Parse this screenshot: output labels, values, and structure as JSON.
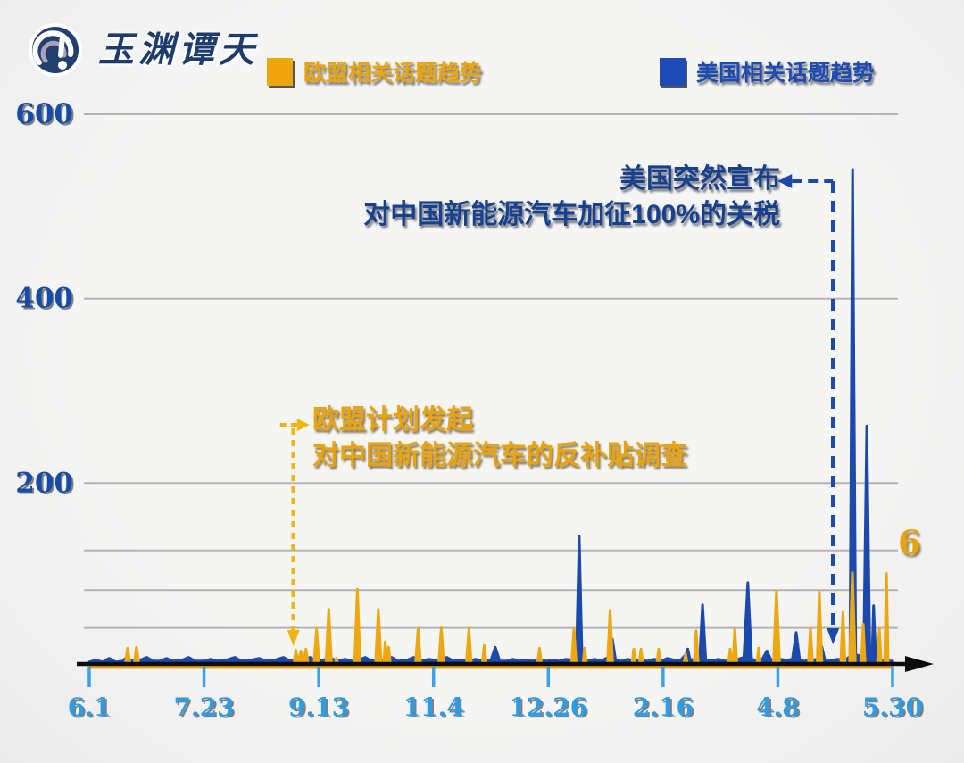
{
  "logo": {
    "text": "玉渊谭天"
  },
  "legend": [
    {
      "key": "eu",
      "label": "欧盟相关话题趋势",
      "color": "#eda70f"
    },
    {
      "key": "us",
      "label": "美国相关话题趋势",
      "color": "#1c4bb4"
    }
  ],
  "annotations": {
    "us": {
      "line1": "美国突然宣布",
      "line2": "对中国新能源汽车加征100%的关税",
      "color": "#16418f",
      "marker_day": 337
    },
    "eu": {
      "line1": "欧盟计划发起",
      "line2": "对中国新能源汽车的反补贴调查",
      "color": "#e8a30e",
      "marker_day": 92.5
    }
  },
  "right_label": "6",
  "colors": {
    "eu_series": "#eda70f",
    "us_series": "#1b49ad",
    "x_label": "#2d9ce6",
    "y_label": "#164ba8",
    "gridline": "#b3b3b3",
    "axis": "#0d0d0d",
    "tick": "#3ba1e8",
    "us_dash": "#1b4aa8",
    "eu_dash": "#f0b40e"
  },
  "chart_data": {
    "type": "line",
    "title": "",
    "xlabel": "",
    "ylabel": "",
    "grid": "horizontal",
    "legend_position": "top",
    "x_axis": {
      "tick_labels": [
        "6.1",
        "7.23",
        "9.13",
        "11.4",
        "12.26",
        "2.16",
        "4.8",
        "5.30"
      ],
      "tick_days": [
        0,
        52,
        104,
        156,
        208,
        260,
        312,
        364
      ],
      "range_days": [
        0,
        364
      ]
    },
    "y_axis": {
      "tick_labels": [
        "200",
        "400",
        "600"
      ],
      "tick_values": [
        200,
        400,
        600
      ],
      "minor_gridline_values": [
        43,
        84,
        127
      ],
      "ylim": [
        0,
        620
      ]
    },
    "series": [
      {
        "key": "us",
        "name": "美国相关话题趋势",
        "color": "#1b49ad",
        "points": [
          [
            0,
            6
          ],
          [
            3,
            8
          ],
          [
            6,
            6
          ],
          [
            9,
            10
          ],
          [
            12,
            6
          ],
          [
            15,
            7
          ],
          [
            17,
            11
          ],
          [
            19,
            7
          ],
          [
            23,
            8
          ],
          [
            26,
            11
          ],
          [
            29,
            7
          ],
          [
            32,
            7
          ],
          [
            35,
            10
          ],
          [
            38,
            7
          ],
          [
            42,
            8
          ],
          [
            45,
            11
          ],
          [
            48,
            7
          ],
          [
            52,
            7
          ],
          [
            55,
            9
          ],
          [
            58,
            7
          ],
          [
            62,
            8
          ],
          [
            66,
            11
          ],
          [
            69,
            7
          ],
          [
            73,
            8
          ],
          [
            77,
            10
          ],
          [
            80,
            7
          ],
          [
            84,
            8
          ],
          [
            88,
            11
          ],
          [
            91,
            7
          ],
          [
            94,
            9
          ],
          [
            97,
            7
          ],
          [
            100,
            11
          ],
          [
            103,
            7
          ],
          [
            106,
            8
          ],
          [
            109,
            11
          ],
          [
            112,
            7
          ],
          [
            116,
            9
          ],
          [
            119,
            7
          ],
          [
            122,
            8
          ],
          [
            125,
            11
          ],
          [
            128,
            7
          ],
          [
            131,
            9
          ],
          [
            134,
            7
          ],
          [
            137,
            11
          ],
          [
            140,
            7
          ],
          [
            144,
            8
          ],
          [
            147,
            11
          ],
          [
            150,
            7
          ],
          [
            154,
            9
          ],
          [
            158,
            7
          ],
          [
            162,
            11
          ],
          [
            165,
            7
          ],
          [
            169,
            8
          ],
          [
            172,
            7
          ],
          [
            175,
            9
          ],
          [
            178,
            7
          ],
          [
            182,
            8
          ],
          [
            184,
            22
          ],
          [
            186,
            7
          ],
          [
            189,
            7
          ],
          [
            192,
            9
          ],
          [
            195,
            7
          ],
          [
            198,
            8
          ],
          [
            201,
            7
          ],
          [
            204,
            9
          ],
          [
            207,
            7
          ],
          [
            210,
            8
          ],
          [
            213,
            7
          ],
          [
            216,
            9
          ],
          [
            219,
            8
          ],
          [
            220.7,
            9
          ],
          [
            222,
            142
          ],
          [
            223.3,
            9
          ],
          [
            226,
            7
          ],
          [
            229,
            9
          ],
          [
            232,
            7
          ],
          [
            235,
            11
          ],
          [
            237,
            31
          ],
          [
            238.5,
            8
          ],
          [
            241,
            7
          ],
          [
            244,
            9
          ],
          [
            247,
            7
          ],
          [
            250,
            8
          ],
          [
            253,
            7
          ],
          [
            256,
            9
          ],
          [
            259,
            7
          ],
          [
            262,
            10
          ],
          [
            265,
            8
          ],
          [
            268,
            8
          ],
          [
            270.3,
            14
          ],
          [
            271.2,
            20
          ],
          [
            272.2,
            9
          ],
          [
            274,
            8
          ],
          [
            276.6,
            11
          ],
          [
            277.9,
            68
          ],
          [
            279.3,
            9
          ],
          [
            282,
            7
          ],
          [
            285,
            9
          ],
          [
            288,
            7
          ],
          [
            291,
            8
          ],
          [
            294,
            9
          ],
          [
            296.6,
            11
          ],
          [
            298.4,
            92
          ],
          [
            300.1,
            9
          ],
          [
            302,
            8
          ],
          [
            305,
            9
          ],
          [
            307,
            18
          ],
          [
            309,
            8
          ],
          [
            311,
            8
          ],
          [
            313,
            9
          ],
          [
            316,
            8
          ],
          [
            318.6,
            9
          ],
          [
            320.3,
            38
          ],
          [
            321.9,
            8
          ],
          [
            324,
            7
          ],
          [
            327,
            8
          ],
          [
            330,
            9
          ],
          [
            331.9,
            23
          ],
          [
            333.3,
            8
          ],
          [
            335,
            7
          ],
          [
            337,
            8
          ],
          [
            339,
            9
          ],
          [
            341,
            8
          ],
          [
            343,
            9
          ],
          [
            344.7,
            12
          ],
          [
            345.9,
            540
          ],
          [
            347.3,
            14
          ],
          [
            348.6,
            13
          ],
          [
            350.9,
            12
          ],
          [
            352.3,
            262
          ],
          [
            353.7,
            12
          ],
          [
            354.7,
            11
          ],
          [
            355.4,
            67
          ],
          [
            356.4,
            8
          ],
          [
            358,
            7
          ],
          [
            360,
            8
          ],
          [
            362,
            7
          ],
          [
            364,
            7
          ]
        ]
      },
      {
        "key": "eu",
        "name": "欧盟相关话题趋势",
        "color": "#eda70f",
        "points": [
          [
            0,
            2
          ],
          [
            15,
            2
          ],
          [
            16.2,
            2
          ],
          [
            17.4,
            21
          ],
          [
            18.6,
            2
          ],
          [
            20.2,
            2
          ],
          [
            21.4,
            22
          ],
          [
            22.6,
            2
          ],
          [
            25,
            2
          ],
          [
            60,
            2
          ],
          [
            90,
            2
          ],
          [
            92.6,
            2
          ],
          [
            93.6,
            19
          ],
          [
            94.6,
            5
          ],
          [
            95.9,
            18
          ],
          [
            96.9,
            5
          ],
          [
            98.2,
            20
          ],
          [
            99.2,
            3
          ],
          [
            101.8,
            3
          ],
          [
            103,
            42
          ],
          [
            104.2,
            3
          ],
          [
            107.2,
            3
          ],
          [
            108.5,
            63
          ],
          [
            109.8,
            3
          ],
          [
            111.3,
            3
          ],
          [
            112,
            10
          ],
          [
            112.8,
            3
          ],
          [
            120.2,
            3
          ],
          [
            121.5,
            85
          ],
          [
            122.8,
            3
          ],
          [
            129.7,
            3
          ],
          [
            131,
            63
          ],
          [
            132.3,
            3
          ],
          [
            133.4,
            3
          ],
          [
            134.1,
            28
          ],
          [
            134.9,
            4
          ],
          [
            135.7,
            22
          ],
          [
            136.5,
            3
          ],
          [
            147.8,
            2
          ],
          [
            149,
            42
          ],
          [
            150.2,
            2
          ],
          [
            158.3,
            2
          ],
          [
            159.5,
            43
          ],
          [
            160.7,
            2
          ],
          [
            170.8,
            2
          ],
          [
            172,
            42
          ],
          [
            173.2,
            2
          ],
          [
            178,
            2
          ],
          [
            179,
            24
          ],
          [
            180,
            2
          ],
          [
            203,
            2
          ],
          [
            204,
            21
          ],
          [
            205,
            2
          ],
          [
            218.5,
            2
          ],
          [
            219.6,
            42
          ],
          [
            220.7,
            2
          ],
          [
            223.6,
            2
          ],
          [
            224.5,
            21
          ],
          [
            225.4,
            2
          ],
          [
            234.8,
            2
          ],
          [
            236,
            62
          ],
          [
            237.2,
            2
          ],
          [
            245.8,
            2
          ],
          [
            246.7,
            20
          ],
          [
            247.6,
            2
          ],
          [
            249.1,
            2
          ],
          [
            250,
            20
          ],
          [
            250.9,
            2
          ],
          [
            257.1,
            2
          ],
          [
            258,
            20
          ],
          [
            258.9,
            2
          ],
          [
            269.3,
            2
          ],
          [
            270.2,
            15
          ],
          [
            271.1,
            2
          ],
          [
            274,
            2
          ],
          [
            275,
            40
          ],
          [
            276,
            2
          ],
          [
            289.5,
            2
          ],
          [
            290.4,
            20
          ],
          [
            291.3,
            2
          ],
          [
            291.7,
            3
          ],
          [
            292.5,
            42
          ],
          [
            293.5,
            2
          ],
          [
            302.4,
            2
          ],
          [
            303.3,
            21
          ],
          [
            304.2,
            2
          ],
          [
            310,
            2
          ],
          [
            311.4,
            83
          ],
          [
            312.8,
            2
          ],
          [
            325.8,
            2
          ],
          [
            326.8,
            42
          ],
          [
            327.8,
            2
          ],
          [
            329.8,
            2
          ],
          [
            330.8,
            82
          ],
          [
            332,
            2
          ],
          [
            340.5,
            2
          ],
          [
            341.5,
            60
          ],
          [
            342.5,
            4
          ],
          [
            344.5,
            4
          ],
          [
            345.8,
            103
          ],
          [
            347.1,
            4
          ],
          [
            349.8,
            3
          ],
          [
            350.7,
            47
          ],
          [
            351.6,
            3
          ],
          [
            357.1,
            2
          ],
          [
            358,
            42
          ],
          [
            358.9,
            2
          ],
          [
            360.4,
            2
          ],
          [
            361.2,
            102
          ],
          [
            362,
            2
          ],
          [
            364,
            3
          ]
        ]
      }
    ]
  }
}
